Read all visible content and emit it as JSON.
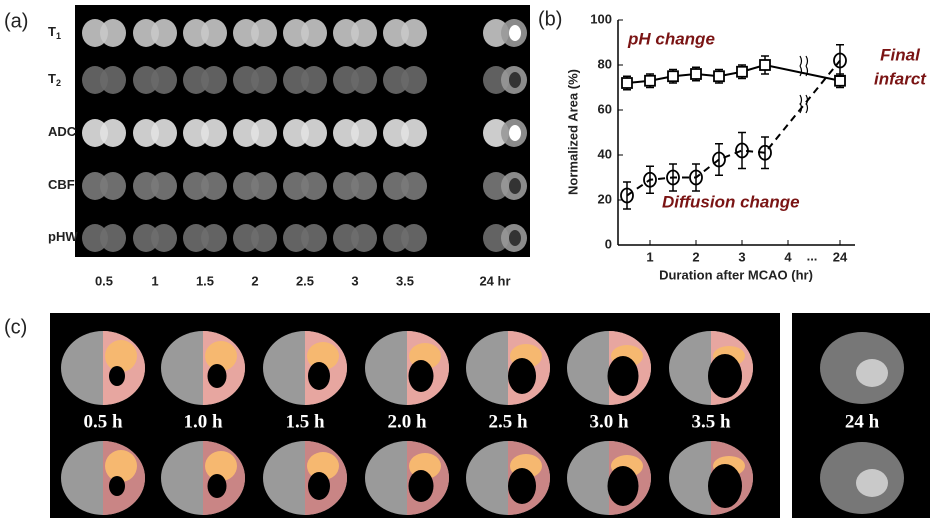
{
  "panel_a": {
    "label": "(a)",
    "rows": [
      [
        "T",
        "1"
      ],
      [
        "T",
        "2"
      ],
      [
        "ADC"
      ],
      [
        "CBF"
      ],
      [
        "pHW"
      ]
    ],
    "columns": [
      "0.5",
      "1",
      "1.5",
      "2",
      "2.5",
      "3",
      "3.5",
      "24 hr"
    ]
  },
  "chart_data": {
    "type": "line",
    "panel_label": "(b)",
    "x_label": "Duration after MCAO (hr)",
    "y_label": "Normalized Area (%)",
    "x": [
      0.5,
      1,
      1.5,
      2,
      2.5,
      3,
      3.5,
      24
    ],
    "series": [
      {
        "name": "pH change",
        "color": "#000000",
        "marker": "square",
        "dash": false,
        "values": [
          72,
          73,
          75,
          76,
          75,
          77,
          80,
          73
        ],
        "errors": [
          3,
          3,
          3,
          3,
          3,
          3,
          4,
          3
        ]
      },
      {
        "name": "Diffusion change",
        "color": "#000000",
        "marker": "circle",
        "dash": true,
        "values": [
          22,
          29,
          30,
          30,
          38,
          42,
          41,
          82
        ],
        "errors": [
          6,
          6,
          6,
          6,
          7,
          8,
          7,
          7
        ]
      }
    ],
    "annotations": [
      "Final",
      "infarct"
    ],
    "axis_break_label": "...",
    "xlim": [
      0.3,
      24
    ],
    "xticks": [
      1,
      2,
      3,
      4,
      24
    ],
    "ylim": [
      0,
      100
    ],
    "yticks": [
      0,
      20,
      40,
      60,
      80,
      100
    ]
  },
  "panel_c": {
    "label": "(c)",
    "columns": [
      "0.5 h",
      "1.0 h",
      "1.5 h",
      "2.0 h",
      "2.5 h",
      "3.0 h",
      "3.5 h",
      "24 h"
    ]
  }
}
